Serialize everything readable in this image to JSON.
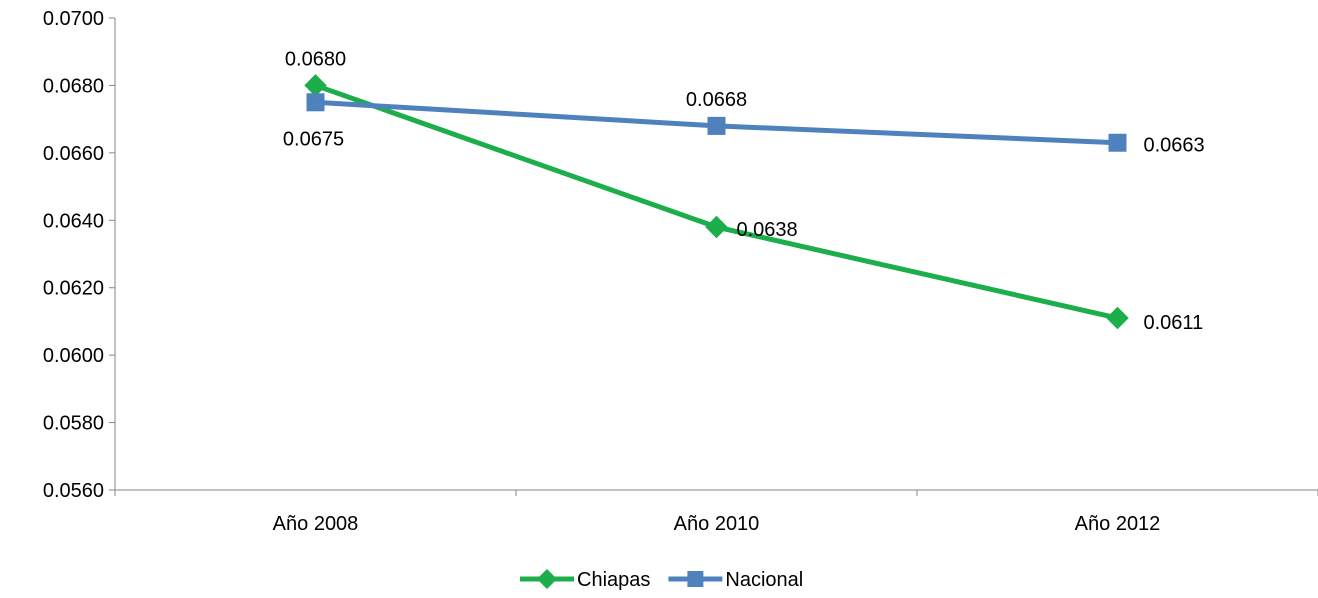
{
  "chart_data": {
    "type": "line",
    "categories": [
      "Año 2008",
      "Año 2010",
      "Año 2012"
    ],
    "series": [
      {
        "name": "Chiapas",
        "values": [
          0.068,
          0.0638,
          0.0611
        ],
        "labels": [
          "0.0680",
          "0.0638",
          "0.0611"
        ],
        "color": "#1BAE4B",
        "marker": "diamond"
      },
      {
        "name": "Nacional",
        "values": [
          0.0675,
          0.0668,
          0.0663
        ],
        "labels": [
          "0.0675",
          "0.0668",
          "0.0663"
        ],
        "color": "#4F81BD",
        "marker": "square"
      }
    ],
    "ylim": [
      0.056,
      0.07
    ],
    "yticks": [
      "0.0560",
      "0.0580",
      "0.0600",
      "0.0620",
      "0.0640",
      "0.0660",
      "0.0680",
      "0.0700"
    ],
    "legend_position": "bottom",
    "grid": false
  }
}
